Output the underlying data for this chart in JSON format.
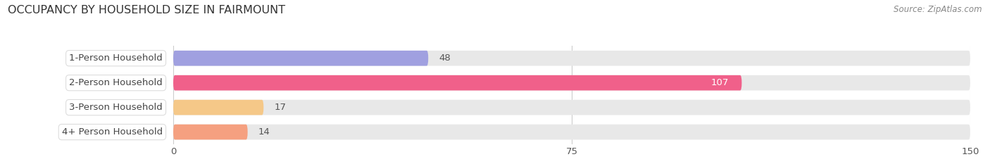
{
  "title": "OCCUPANCY BY HOUSEHOLD SIZE IN FAIRMOUNT",
  "source": "Source: ZipAtlas.com",
  "categories": [
    "1-Person Household",
    "2-Person Household",
    "3-Person Household",
    "4+ Person Household"
  ],
  "values": [
    48,
    107,
    17,
    14
  ],
  "bar_colors": [
    "#a0a0e0",
    "#f0608a",
    "#f5c888",
    "#f5a080"
  ],
  "bar_bg_color": "#e8e8e8",
  "xlim": [
    0,
    150
  ],
  "xticks": [
    0,
    75,
    150
  ],
  "label_colors": [
    "#555555",
    "#ffffff",
    "#555555",
    "#555555"
  ],
  "background_color": "#ffffff",
  "title_fontsize": 11.5,
  "source_fontsize": 8.5,
  "tick_fontsize": 9.5,
  "bar_label_fontsize": 9.5,
  "category_fontsize": 9.5
}
